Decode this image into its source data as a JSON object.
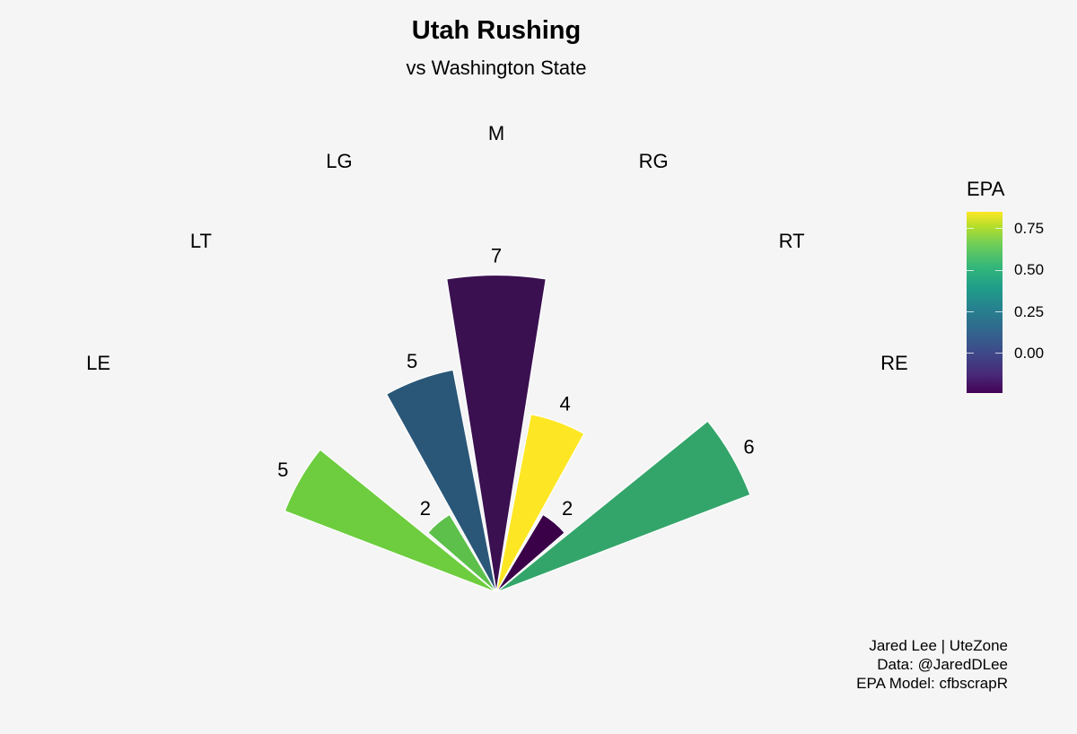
{
  "chart_data": {
    "type": "bar",
    "subtype": "polar-bar (half rose)",
    "title": "Utah Rushing",
    "subtitle": "vs Washington State",
    "categories": [
      "LE",
      "LT",
      "LG",
      "M",
      "RG",
      "RT",
      "RE"
    ],
    "values": [
      5,
      2,
      5,
      7,
      4,
      2,
      6
    ],
    "value_labels": [
      "5",
      "2",
      "5",
      "7",
      "4",
      "2",
      "6"
    ],
    "epa": [
      0.65,
      0.6,
      0.15,
      -0.12,
      0.85,
      -0.2,
      0.45
    ],
    "colors": [
      "#6dcd3f",
      "#5cc04a",
      "#2a5778",
      "#3a1050",
      "#fde725",
      "#3a0048",
      "#34a56a"
    ],
    "legend": {
      "title": "EPA",
      "type": "colorbar",
      "colormap": "viridis",
      "ticks": [
        "0.75",
        "0.50",
        "0.25",
        "0.00"
      ],
      "position": "right"
    },
    "caption": [
      "Jared Lee | UteZone",
      "Data: @JaredDLee",
      "EPA Model: cfbscrapR"
    ],
    "grid": false
  }
}
